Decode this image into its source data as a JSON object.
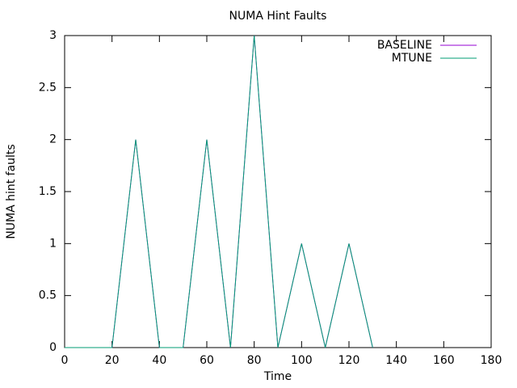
{
  "chart_data": {
    "type": "line",
    "title": "NUMA Hint Faults",
    "x_label": "Time",
    "y_label": "NUMA hint faults",
    "x": [
      0,
      10,
      20,
      30,
      40,
      50,
      60,
      70,
      80,
      90,
      100,
      110,
      120,
      130
    ],
    "series": [
      {
        "name": "BASELINE",
        "color": "#9400d3",
        "values": [
          0,
          0,
          0,
          2,
          0,
          0,
          2,
          0,
          3,
          0,
          1,
          0,
          1,
          0
        ]
      },
      {
        "name": "MTUNE",
        "color": "#009e73",
        "values": [
          0,
          0,
          0,
          2,
          0,
          0,
          2,
          0,
          3,
          0,
          1,
          0,
          1,
          0
        ]
      }
    ],
    "xlim": [
      0,
      180
    ],
    "xticks": [
      0,
      20,
      40,
      60,
      80,
      100,
      120,
      140,
      160,
      180
    ],
    "ylim": [
      0,
      3
    ],
    "yticks": [
      0,
      0.5,
      1,
      1.5,
      2,
      2.5,
      3
    ],
    "legend": "top-right",
    "grid": false
  }
}
